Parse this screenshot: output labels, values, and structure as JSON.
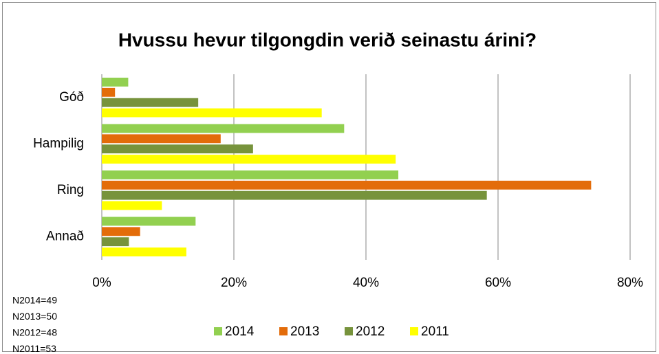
{
  "chart_data": {
    "type": "barh",
    "title": "Hvussu hevur tilgongdin verið seinastu árini?",
    "categories": [
      "Góð",
      "Hampilig",
      "Ring",
      "Annað"
    ],
    "series": [
      {
        "name": "2014",
        "color": "#92d050",
        "values": [
          4,
          36.7,
          44.9,
          14.2
        ]
      },
      {
        "name": "2013",
        "color": "#e36c0a",
        "values": [
          2,
          18,
          74.1,
          5.8
        ]
      },
      {
        "name": "2012",
        "color": "#77933c",
        "values": [
          14.6,
          22.9,
          58.3,
          4.1
        ]
      },
      {
        "name": "2011",
        "color": "#ffff00",
        "values": [
          33.3,
          44.5,
          9.1,
          12.8
        ]
      }
    ],
    "xlim": [
      0,
      80
    ],
    "xticks": [
      {
        "value": 0,
        "label": "0%"
      },
      {
        "value": 20,
        "label": "20%"
      },
      {
        "value": 40,
        "label": "40%"
      },
      {
        "value": 60,
        "label": "60%"
      },
      {
        "value": 80,
        "label": "80%"
      }
    ],
    "grid": true,
    "legend": "bottom",
    "notes": [
      "N2014=49",
      "N2013=50",
      "N2012=48",
      "N2011=53"
    ]
  }
}
